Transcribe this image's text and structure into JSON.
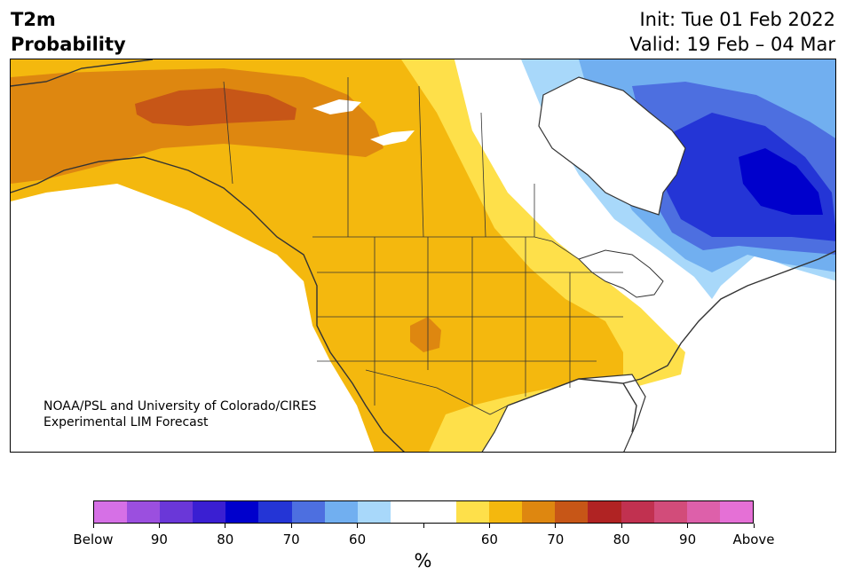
{
  "title": {
    "line1": "T2m",
    "line2": "Probability"
  },
  "subtitle": {
    "init": "Init: Tue 01 Feb 2022",
    "valid": "Valid: 19 Feb – 04 Mar"
  },
  "credit": {
    "line1": "NOAA/PSL and University of Colorado/CIRES",
    "line2": "Experimental LIM Forecast"
  },
  "colorbar": {
    "colors": [
      "#d670e6",
      "#9b4fdf",
      "#6a37d8",
      "#3a1fd2",
      "#0000cc",
      "#2435d6",
      "#4d6fe0",
      "#71aff0",
      "#a8d8fa",
      "#ffffff",
      "#ffffff",
      "#fee04a",
      "#f4b80e",
      "#de8710",
      "#c75617",
      "#b02323",
      "#c13150",
      "#d24c7a",
      "#dd60aa",
      "#e570d6"
    ],
    "tick_labels": [
      "Below",
      "90",
      "80",
      "70",
      "60",
      "",
      "60",
      "70",
      "80",
      "90",
      "Above"
    ],
    "unit": "%"
  },
  "legend_colors": {
    "above_60": "#fee04a",
    "above_65": "#f4b80e",
    "above_70": "#de8710",
    "above_75": "#c75617",
    "below_60": "#a8d8fa",
    "below_65": "#71aff0",
    "below_70": "#4d6fe0",
    "below_75": "#2435d6",
    "below_80": "#0000cc"
  }
}
